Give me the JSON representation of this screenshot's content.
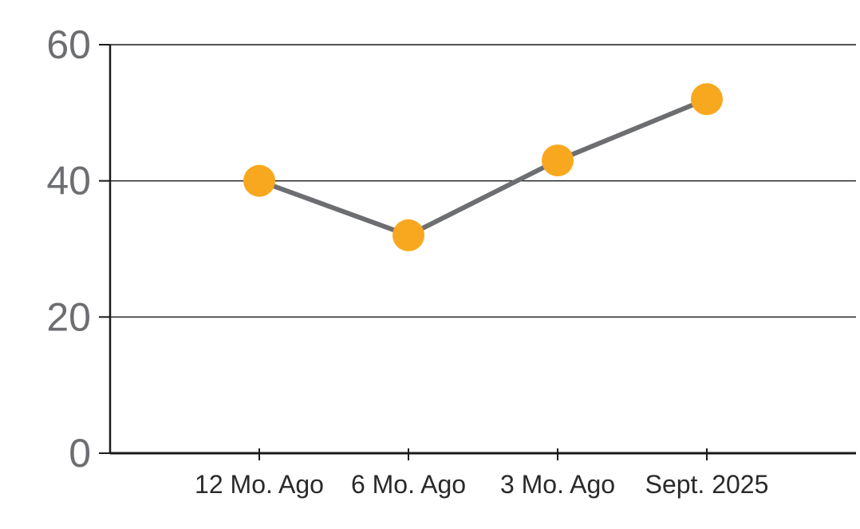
{
  "page": {
    "background_color": "#FFFFFF"
  },
  "chart_data": {
    "type": "line",
    "categories": [
      "12 Mo. Ago",
      "6 Mo. Ago",
      "3 Mo. Ago",
      "Sept. 2025"
    ],
    "values": [
      40,
      32,
      43,
      52
    ],
    "yticks": [
      0,
      20,
      40,
      60
    ],
    "ylim": [
      0,
      60
    ],
    "title": "",
    "xlabel": "",
    "ylabel": "",
    "grid": true,
    "legend_position": "none",
    "marker_color": "#F8A81E",
    "line_color": "#6D6E71",
    "axis_color": "#1A1A1A",
    "gridline_color": "#1A1A1A",
    "ytick_label_color": "#6D6E71",
    "xtick_label_color": "#2A2A2A"
  }
}
